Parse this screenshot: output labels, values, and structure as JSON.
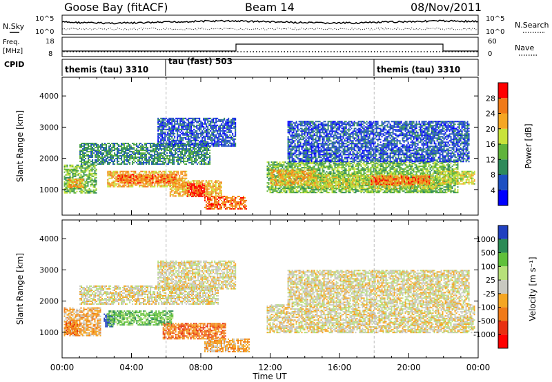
{
  "header": {
    "station": "Goose Bay (fitACF)",
    "beam": "Beam 14",
    "date": "08/Nov/2011"
  },
  "noise_panel": {
    "left_label": "N.Sky",
    "left_ticks": [
      "10^5",
      "10^0"
    ],
    "right_label": "N.Search",
    "right_ticks": [
      "10^5",
      "10^0"
    ]
  },
  "freq_panel": {
    "left_label_line1": "Freq.",
    "left_label_line2": "[MHz]",
    "left_ticks": [
      "18",
      "8"
    ],
    "right_label": "Nave",
    "right_ticks": [
      "60",
      "0"
    ]
  },
  "cpid_panel": {
    "label": "CPID",
    "segments": [
      {
        "label": "themis (tau) 3310",
        "start_hour": 0,
        "end_hour": 6
      },
      {
        "label": "tau (fast) 503",
        "start_hour": 6,
        "end_hour": 18
      },
      {
        "label": "themis (tau) 3310",
        "start_hour": 18,
        "end_hour": 24
      }
    ]
  },
  "chart_data": [
    {
      "type": "heatmap",
      "panel": "power",
      "ylabel": "Slant Range [km]",
      "xlabel": "Time UT",
      "x_ticks": [
        "00:00",
        "04:00",
        "08:00",
        "12:00",
        "16:00",
        "20:00",
        "00:00"
      ],
      "xlim_hours": [
        0,
        24
      ],
      "y_ticks": [
        1000,
        2000,
        3000,
        4000
      ],
      "ylim_km": [
        180,
        4600
      ],
      "colorbar": {
        "label": "Power [dB]",
        "ticks": [
          "4",
          "8",
          "12",
          "16",
          "20",
          "24",
          "28"
        ],
        "colors": [
          "#0000ff",
          "#1d4fc2",
          "#2e8a5a",
          "#5fb33a",
          "#c8e33a",
          "#f5a623",
          "#f07a18",
          "#ff0000"
        ]
      },
      "regions": [
        {
          "t0": 0.1,
          "t1": 2.0,
          "r0": 900,
          "r1": 1800,
          "level": 3
        },
        {
          "t0": 0.3,
          "t1": 1.2,
          "r0": 1050,
          "r1": 1350,
          "level": 5
        },
        {
          "t0": 2.6,
          "t1": 7.2,
          "r0": 1100,
          "r1": 1600,
          "level": 5
        },
        {
          "t0": 3.2,
          "t1": 6.6,
          "r0": 1200,
          "r1": 1500,
          "level": 6
        },
        {
          "t0": 6.2,
          "t1": 9.2,
          "r0": 800,
          "r1": 1300,
          "level": 5
        },
        {
          "t0": 7.2,
          "t1": 8.2,
          "r0": 800,
          "r1": 1200,
          "level": 7
        },
        {
          "t0": 8.2,
          "t1": 10.6,
          "r0": 400,
          "r1": 800,
          "level": 6
        },
        {
          "t0": 1.0,
          "t1": 8.5,
          "r0": 1800,
          "r1": 2500,
          "level": 2
        },
        {
          "t0": 5.5,
          "t1": 10.0,
          "r0": 2400,
          "r1": 3300,
          "level": 1
        },
        {
          "t0": 11.8,
          "t1": 22.8,
          "r0": 900,
          "r1": 1900,
          "level": 3
        },
        {
          "t0": 12.0,
          "t1": 14.6,
          "r0": 1150,
          "r1": 1650,
          "level": 5
        },
        {
          "t0": 14.4,
          "t1": 21.6,
          "r0": 1050,
          "r1": 1500,
          "level": 4
        },
        {
          "t0": 17.8,
          "t1": 21.2,
          "r0": 1150,
          "r1": 1450,
          "level": 6
        },
        {
          "t0": 21.6,
          "t1": 23.8,
          "r0": 1200,
          "r1": 1600,
          "level": 4
        },
        {
          "t0": 13.0,
          "t1": 23.5,
          "r0": 1900,
          "r1": 3200,
          "level": 1
        }
      ]
    },
    {
      "type": "heatmap",
      "panel": "velocity",
      "ylabel": "Slant Range [km]",
      "xlabel": "Time UT",
      "x_ticks": [
        "00:00",
        "04:00",
        "08:00",
        "12:00",
        "16:00",
        "20:00",
        "00:00"
      ],
      "xlim_hours": [
        0,
        24
      ],
      "y_ticks": [
        1000,
        2000,
        3000,
        4000
      ],
      "ylim_km": [
        180,
        4600
      ],
      "colorbar": {
        "label": "Velocity [m s⁻¹]",
        "ticks": [
          "1000",
          "500",
          "100",
          "25",
          "-25",
          "-100",
          "-500",
          "-1000"
        ],
        "colors": [
          "#2040c0",
          "#2a8a55",
          "#5fc03a",
          "#b7e07a",
          "#c8c8c0",
          "#f5a623",
          "#f07a18",
          "#e83010",
          "#ff0000"
        ]
      },
      "regions": [
        {
          "t0": 0.1,
          "t1": 2.2,
          "r0": 900,
          "r1": 1800,
          "level": 5
        },
        {
          "t0": 0.2,
          "t1": 0.9,
          "r0": 950,
          "r1": 1350,
          "level": 6
        },
        {
          "t0": 2.4,
          "t1": 3.0,
          "r0": 1200,
          "r1": 1600,
          "level": 0
        },
        {
          "t0": 2.6,
          "t1": 6.4,
          "r0": 1250,
          "r1": 1700,
          "level": 2
        },
        {
          "t0": 5.8,
          "t1": 9.4,
          "r0": 800,
          "r1": 1300,
          "level": 6
        },
        {
          "t0": 8.2,
          "t1": 10.8,
          "r0": 400,
          "r1": 800,
          "level": 5
        },
        {
          "t0": 1.0,
          "t1": 9.0,
          "r0": 1900,
          "r1": 2500,
          "level": 4
        },
        {
          "t0": 5.5,
          "t1": 10.0,
          "r0": 2400,
          "r1": 3300,
          "level": 4
        },
        {
          "t0": 11.8,
          "t1": 23.8,
          "r0": 1000,
          "r1": 1900,
          "level": 4
        },
        {
          "t0": 13.0,
          "t1": 23.5,
          "r0": 1900,
          "r1": 3000,
          "level": 4
        }
      ]
    }
  ]
}
